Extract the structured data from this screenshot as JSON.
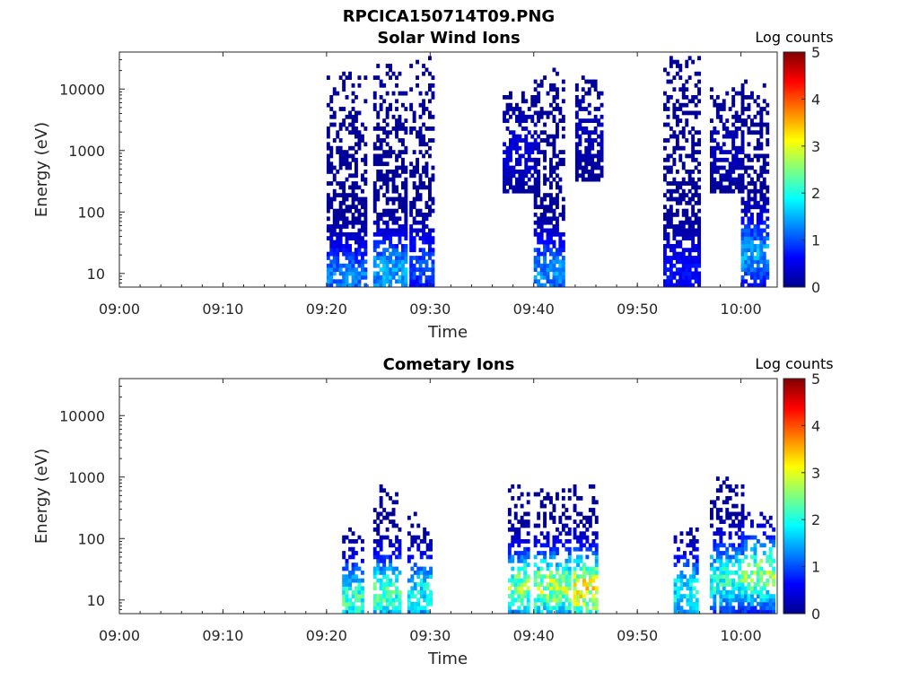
{
  "figure_title": "RPCICA150714T09.PNG",
  "colors": {
    "jet": [
      "#00008f",
      "#0000ff",
      "#0080ff",
      "#00ffff",
      "#80ff80",
      "#ffff00",
      "#ff8000",
      "#ff0000",
      "#800000"
    ]
  },
  "chart_data": [
    {
      "type": "heatmap",
      "title": "Solar Wind Ions",
      "xlabel": "Time",
      "ylabel": "Energy (eV)",
      "xticks": [
        "09:00",
        "09:10",
        "09:20",
        "09:30",
        "09:40",
        "09:50",
        "10:00"
      ],
      "xlim_minutes": [
        0,
        63.5
      ],
      "yscale": "log",
      "ylim": [
        6,
        40000
      ],
      "yticks": [
        "10",
        "100",
        "1000",
        "10000"
      ],
      "colorbar": {
        "title": "Log counts",
        "range": [
          0,
          5
        ],
        "ticks": [
          "0",
          "1",
          "2",
          "3",
          "4",
          "5"
        ]
      },
      "bursts": [
        {
          "t_start": 20.0,
          "t_end": 23.8,
          "e_min": 6,
          "e_max": 18000,
          "peak_log_counts": 1.5,
          "peak_energy": 8
        },
        {
          "t_start": 24.5,
          "t_end": 27.8,
          "e_min": 6,
          "e_max": 25000,
          "peak_log_counts": 1.8,
          "peak_energy": 10
        },
        {
          "t_start": 28.0,
          "t_end": 30.2,
          "e_min": 6,
          "e_max": 30000,
          "peak_log_counts": 1.2,
          "peak_energy": 12
        },
        {
          "t_start": 37.0,
          "t_end": 40.5,
          "e_min": 200,
          "e_max": 8000,
          "peak_log_counts": 0.5,
          "peak_energy": 1000
        },
        {
          "t_start": 40.0,
          "t_end": 42.8,
          "e_min": 6,
          "e_max": 20000,
          "peak_log_counts": 1.6,
          "peak_energy": 10
        },
        {
          "t_start": 44.0,
          "t_end": 46.5,
          "e_min": 300,
          "e_max": 15000,
          "peak_log_counts": 0.3,
          "peak_energy": 2000
        },
        {
          "t_start": 52.5,
          "t_end": 55.8,
          "e_min": 6,
          "e_max": 30000,
          "peak_log_counts": 0.8,
          "peak_energy": 10
        },
        {
          "t_start": 57.0,
          "t_end": 60.0,
          "e_min": 200,
          "e_max": 10000,
          "peak_log_counts": 0.3,
          "peak_energy": 1000
        },
        {
          "t_start": 60.0,
          "t_end": 62.5,
          "e_min": 6,
          "e_max": 15000,
          "peak_log_counts": 1.7,
          "peak_energy": 20
        }
      ]
    },
    {
      "type": "heatmap",
      "title": "Cometary Ions",
      "xlabel": "Time",
      "ylabel": "Energy (eV)",
      "xticks": [
        "09:00",
        "09:10",
        "09:20",
        "09:30",
        "09:40",
        "09:50",
        "10:00"
      ],
      "xlim_minutes": [
        0,
        63.5
      ],
      "yscale": "log",
      "ylim": [
        6,
        40000
      ],
      "yticks": [
        "10",
        "100",
        "1000",
        "10000"
      ],
      "colorbar": {
        "title": "Log counts",
        "range": [
          0,
          5
        ],
        "ticks": [
          "0",
          "1",
          "2",
          "3",
          "4",
          "5"
        ]
      },
      "bursts": [
        {
          "t_start": 21.5,
          "t_end": 23.5,
          "e_min": 6,
          "e_max": 150,
          "peak_log_counts": 2.6,
          "peak_energy": 10
        },
        {
          "t_start": 24.5,
          "t_end": 27.0,
          "e_min": 6,
          "e_max": 700,
          "peak_log_counts": 2.8,
          "peak_energy": 12
        },
        {
          "t_start": 27.8,
          "t_end": 30.0,
          "e_min": 6,
          "e_max": 250,
          "peak_log_counts": 2.3,
          "peak_energy": 12
        },
        {
          "t_start": 37.5,
          "t_end": 39.5,
          "e_min": 6,
          "e_max": 800,
          "peak_log_counts": 3.0,
          "peak_energy": 15
        },
        {
          "t_start": 40.0,
          "t_end": 43.5,
          "e_min": 6,
          "e_max": 600,
          "peak_log_counts": 3.3,
          "peak_energy": 15
        },
        {
          "t_start": 43.8,
          "t_end": 46.0,
          "e_min": 6,
          "e_max": 700,
          "peak_log_counts": 3.8,
          "peak_energy": 14
        },
        {
          "t_start": 53.5,
          "t_end": 55.8,
          "e_min": 6,
          "e_max": 150,
          "peak_log_counts": 2.3,
          "peak_energy": 12
        },
        {
          "t_start": 57.0,
          "t_end": 60.0,
          "e_min": 6,
          "e_max": 1000,
          "peak_log_counts": 2.5,
          "peak_energy": 20
        },
        {
          "t_start": 60.0,
          "t_end": 63.0,
          "e_min": 6,
          "e_max": 300,
          "peak_log_counts": 3.2,
          "peak_energy": 25
        }
      ]
    }
  ]
}
